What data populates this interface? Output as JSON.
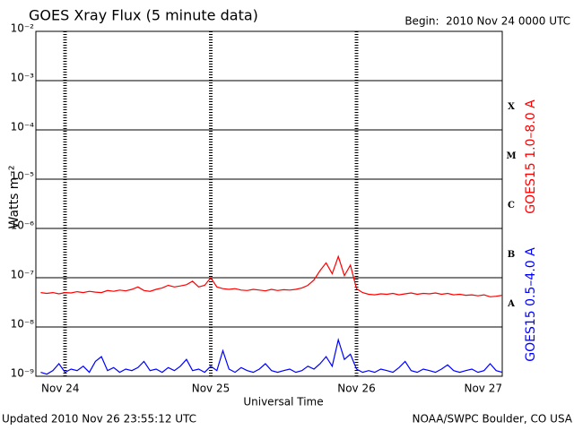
{
  "chart_data": {
    "type": "line",
    "title": "GOES Xray Flux (5 minute data)",
    "subtitle": "Begin:  2010 Nov 24 0000 UTC",
    "y_label": "Watts m⁻²",
    "x_label": "Universal Time",
    "footer_left": "Updated 2010 Nov 26 23:55:12 UTC",
    "footer_right": "NOAA/SWPC Boulder, CO USA",
    "log_scale": true,
    "grid": true,
    "ylim": [
      1e-09,
      0.01
    ],
    "yticks": [
      {
        "value": 1e-09,
        "label": "10⁻⁹"
      },
      {
        "value": 1e-08,
        "label": "10⁻⁸"
      },
      {
        "value": 1e-07,
        "label": "10⁻⁷"
      },
      {
        "value": 1e-06,
        "label": "10⁻⁶"
      },
      {
        "value": 1e-05,
        "label": "10⁻⁵"
      },
      {
        "value": 0.0001,
        "label": "10⁻⁴"
      },
      {
        "value": 0.001,
        "label": "10⁻³"
      },
      {
        "value": 0.01,
        "label": "10⁻²"
      }
    ],
    "xlim": [
      -4.8,
      72
    ],
    "xticks": [
      {
        "value": 0,
        "label": "Nov 24"
      },
      {
        "value": 24,
        "label": "Nov 25"
      },
      {
        "value": 48,
        "label": "Nov 26"
      },
      {
        "value": 72,
        "label": "Nov 27"
      }
    ],
    "flare_classes": [
      {
        "value": 1e-08,
        "label": "A"
      },
      {
        "value": 1e-07,
        "label": "B"
      },
      {
        "value": 1e-06,
        "label": "C"
      },
      {
        "value": 1e-05,
        "label": "M"
      },
      {
        "value": 0.0001,
        "label": "X"
      }
    ],
    "x": [
      -4,
      -3,
      -2,
      -1,
      0,
      1,
      2,
      3,
      4,
      5,
      6,
      7,
      8,
      9,
      10,
      11,
      12,
      13,
      14,
      15,
      16,
      17,
      18,
      19,
      20,
      21,
      22,
      23,
      24,
      25,
      26,
      27,
      28,
      29,
      30,
      31,
      32,
      33,
      34,
      35,
      36,
      37,
      38,
      39,
      40,
      41,
      42,
      43,
      44,
      45,
      46,
      47,
      48,
      49,
      50,
      51,
      52,
      53,
      54,
      55,
      56,
      57,
      58,
      59,
      60,
      61,
      62,
      63,
      64,
      65,
      66,
      67,
      68,
      69,
      70,
      71,
      72
    ],
    "series": [
      {
        "name": "GOES15 1.0–8.0 A",
        "color": "#ff0000",
        "values": [
          5e-08,
          4.8e-08,
          5e-08,
          4.7e-08,
          5e-08,
          4.9e-08,
          5.2e-08,
          5e-08,
          5.3e-08,
          5.1e-08,
          5e-08,
          5.5e-08,
          5.3e-08,
          5.6e-08,
          5.4e-08,
          5.8e-08,
          6.5e-08,
          5.5e-08,
          5.3e-08,
          5.8e-08,
          6.2e-08,
          7e-08,
          6.5e-08,
          6.8e-08,
          7.2e-08,
          8.5e-08,
          6.5e-08,
          7e-08,
          1e-07,
          6.5e-08,
          6e-08,
          5.8e-08,
          6e-08,
          5.6e-08,
          5.5e-08,
          5.8e-08,
          5.6e-08,
          5.4e-08,
          5.8e-08,
          5.5e-08,
          5.7e-08,
          5.6e-08,
          5.8e-08,
          6.2e-08,
          7e-08,
          9e-08,
          1.4e-07,
          2e-07,
          1.2e-07,
          2.7e-07,
          1.1e-07,
          1.8e-07,
          6e-08,
          5e-08,
          4.6e-08,
          4.5e-08,
          4.7e-08,
          4.6e-08,
          4.8e-08,
          4.5e-08,
          4.7e-08,
          4.9e-08,
          4.6e-08,
          4.8e-08,
          4.7e-08,
          4.9e-08,
          4.6e-08,
          4.8e-08,
          4.5e-08,
          4.6e-08,
          4.4e-08,
          4.5e-08,
          4.3e-08,
          4.5e-08,
          4.1e-08,
          4.2e-08,
          4.4e-08
        ]
      },
      {
        "name": "GOES15 0.5–4.0 A",
        "color": "#0000ff",
        "values": [
          1.2e-09,
          1.1e-09,
          1.3e-09,
          1.8e-09,
          1.2e-09,
          1.4e-09,
          1.3e-09,
          1.6e-09,
          1.2e-09,
          2e-09,
          2.5e-09,
          1.3e-09,
          1.5e-09,
          1.2e-09,
          1.4e-09,
          1.3e-09,
          1.5e-09,
          2e-09,
          1.3e-09,
          1.4e-09,
          1.2e-09,
          1.5e-09,
          1.3e-09,
          1.6e-09,
          2.2e-09,
          1.3e-09,
          1.4e-09,
          1.2e-09,
          1.6e-09,
          1.3e-09,
          3.3e-09,
          1.4e-09,
          1.2e-09,
          1.5e-09,
          1.3e-09,
          1.2e-09,
          1.4e-09,
          1.8e-09,
          1.3e-09,
          1.2e-09,
          1.3e-09,
          1.4e-09,
          1.2e-09,
          1.3e-09,
          1.6e-09,
          1.4e-09,
          1.8e-09,
          2.5e-09,
          1.6e-09,
          5.5e-09,
          2.2e-09,
          2.8e-09,
          1.4e-09,
          1.2e-09,
          1.3e-09,
          1.2e-09,
          1.4e-09,
          1.3e-09,
          1.2e-09,
          1.5e-09,
          2e-09,
          1.3e-09,
          1.2e-09,
          1.4e-09,
          1.3e-09,
          1.2e-09,
          1.4e-09,
          1.7e-09,
          1.3e-09,
          1.2e-09,
          1.3e-09,
          1.4e-09,
          1.2e-09,
          1.3e-09,
          1.8e-09,
          1.3e-09,
          1.2e-09
        ]
      }
    ]
  }
}
